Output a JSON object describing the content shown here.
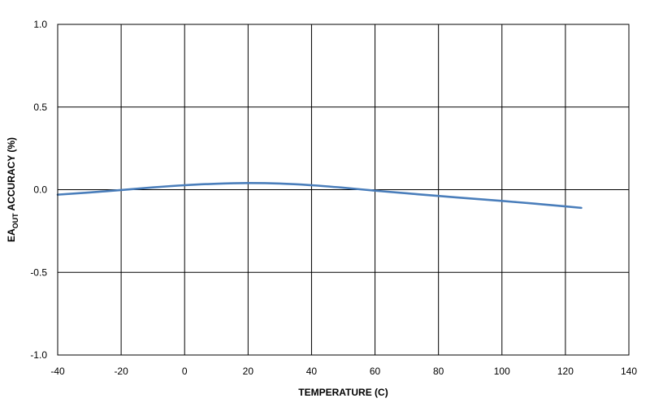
{
  "chart_data": {
    "type": "line",
    "title": "",
    "xlabel": "TEMPERATURE (C)",
    "ylabel": {
      "prefix": "EA",
      "subscript": "OUT",
      "suffix": " ACCURACY (%)"
    },
    "xlim": [
      -40,
      140
    ],
    "ylim": [
      -1.0,
      1.0
    ],
    "x_ticks": [
      -40,
      -20,
      0,
      20,
      40,
      60,
      80,
      100,
      120,
      140
    ],
    "x_tick_labels": [
      "-40",
      "-20",
      "0",
      "20",
      "40",
      "60",
      "80",
      "100",
      "120",
      "140"
    ],
    "y_ticks": [
      1.0,
      0.5,
      0.0,
      -0.5,
      -1.0
    ],
    "y_tick_labels": [
      "1.0",
      "0.5",
      "0.0",
      "-0.5",
      "-1.0"
    ],
    "grid": true,
    "legend": "none",
    "series": [
      {
        "color": "#4a7ebb",
        "x": [
          -40,
          -30,
          -20,
          -10,
          0,
          10,
          20,
          30,
          40,
          50,
          60,
          70,
          80,
          90,
          100,
          110,
          120,
          125
        ],
        "y": [
          -0.03,
          -0.017,
          -0.002,
          0.014,
          0.027,
          0.036,
          0.04,
          0.037,
          0.027,
          0.012,
          -0.006,
          -0.022,
          -0.038,
          -0.053,
          -0.068,
          -0.084,
          -0.101,
          -0.11
        ]
      }
    ]
  }
}
